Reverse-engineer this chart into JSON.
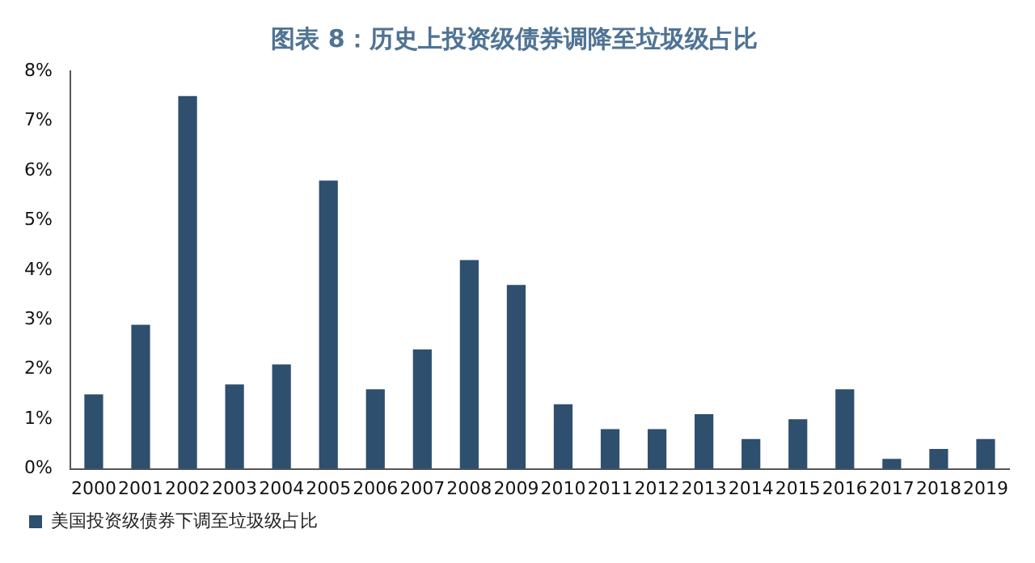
{
  "chart_data": {
    "type": "bar",
    "title": "图表 8：历史上投资级债券调降至垃圾级占比",
    "categories": [
      "2000",
      "2001",
      "2002",
      "2003",
      "2004",
      "2005",
      "2006",
      "2007",
      "2008",
      "2009",
      "2010",
      "2011",
      "2012",
      "2013",
      "2014",
      "2015",
      "2016",
      "2017",
      "2018",
      "2019"
    ],
    "series": [
      {
        "name": "美国投资级债券下调至垃圾级占比",
        "color": "#2e4f6e",
        "values": [
          1.5,
          2.9,
          7.5,
          1.7,
          2.1,
          5.8,
          1.6,
          2.4,
          4.2,
          3.7,
          1.3,
          0.8,
          0.8,
          1.1,
          0.6,
          1.0,
          1.6,
          0.2,
          0.4,
          0.6
        ]
      }
    ],
    "ylim": [
      0,
      8
    ],
    "yticks": [
      {
        "value": 0,
        "label": "0%"
      },
      {
        "value": 1,
        "label": "1%"
      },
      {
        "value": 2,
        "label": "2%"
      },
      {
        "value": 3,
        "label": "3%"
      },
      {
        "value": 4,
        "label": "4%"
      },
      {
        "value": 5,
        "label": "5%"
      },
      {
        "value": 6,
        "label": "6%"
      },
      {
        "value": 7,
        "label": "7%"
      },
      {
        "value": 8,
        "label": "8%"
      }
    ],
    "grid": false,
    "legend": "bottom left"
  }
}
